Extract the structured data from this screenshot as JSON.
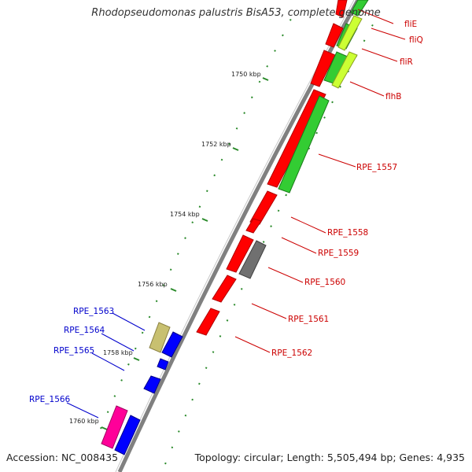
{
  "title": "Rhodopseudomonas palustris BisA53, complete genome",
  "footer": {
    "accession": "Accession: NC_008435",
    "summary": "Topology: circular; Length: 5,505,494 bp; Genes: 4,935"
  },
  "ticks": [
    {
      "label": "1750 kbp"
    },
    {
      "label": "1752 kbp"
    },
    {
      "label": "1754 kbp"
    },
    {
      "label": "1756 kbp"
    },
    {
      "label": "1758 kbp"
    },
    {
      "label": "1760 kbp"
    }
  ],
  "genes_right": [
    {
      "name": "fliE",
      "color": "#cc0000"
    },
    {
      "name": "fliQ",
      "color": "#cc0000"
    },
    {
      "name": "fliR",
      "color": "#cc0000"
    },
    {
      "name": "flhB",
      "color": "#cc0000"
    },
    {
      "name": "RPE_1557",
      "color": "#cc0000"
    },
    {
      "name": "RPE_1558",
      "color": "#cc0000"
    },
    {
      "name": "RPE_1559",
      "color": "#cc0000"
    },
    {
      "name": "RPE_1560",
      "color": "#cc0000"
    },
    {
      "name": "RPE_1561",
      "color": "#cc0000"
    },
    {
      "name": "RPE_1562",
      "color": "#cc0000"
    }
  ],
  "genes_left": [
    {
      "name": "RPE_1563",
      "color": "#0000cc"
    },
    {
      "name": "RPE_1564",
      "color": "#0000cc"
    },
    {
      "name": "RPE_1565",
      "color": "#0000cc"
    },
    {
      "name": "RPE_1566",
      "color": "#0000cc"
    }
  ],
  "colors": {
    "backbone": "#808080",
    "cds_red": "#ff0000",
    "cds_green": "#33cc33",
    "cds_lime": "#ccff33",
    "cds_gray": "#707070",
    "cds_blue": "#0000ff",
    "cds_khaki": "#c8c070",
    "cds_magenta": "#ff0099",
    "gc_skew": "#2a8a2a"
  }
}
